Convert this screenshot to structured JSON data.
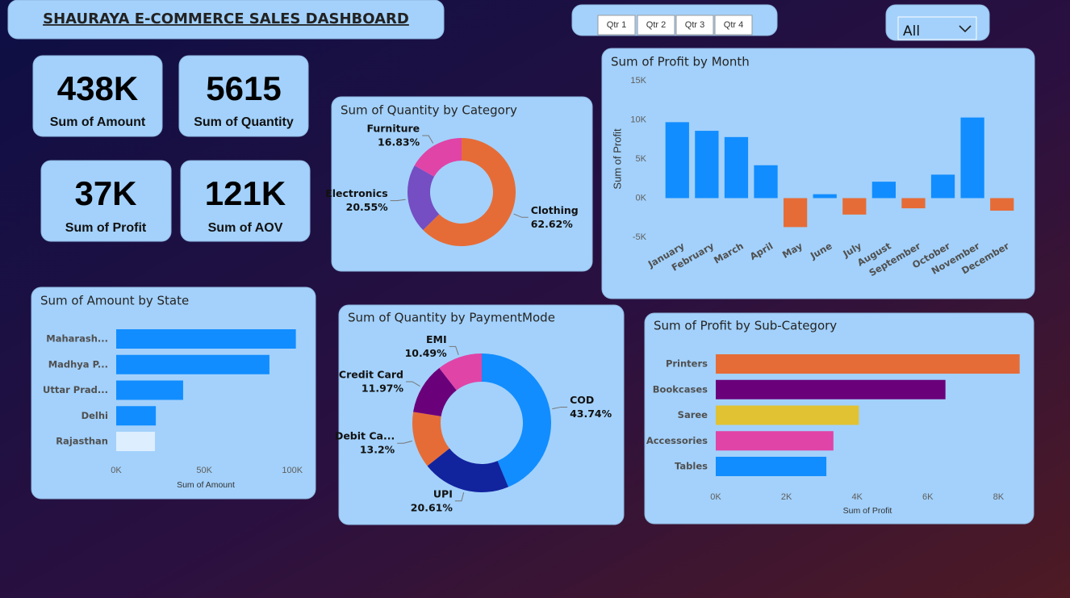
{
  "header": {
    "title": "SHAURAYA E-COMMERCE SALES DASHBOARD"
  },
  "slicers": {
    "quarters": [
      "Qtr 1",
      "Qtr 2",
      "Qtr 3",
      "Qtr 4"
    ],
    "dropdown": "All"
  },
  "kpis": [
    {
      "value": "438K",
      "label": "Sum of Amount"
    },
    {
      "value": "5615",
      "label": "Sum of Quantity"
    },
    {
      "value": "37K",
      "label": "Sum of Profit"
    },
    {
      "value": "121K",
      "label": "Sum of AOV"
    }
  ],
  "chart_data": [
    {
      "type": "donut",
      "title": "Sum of Quantity by Category",
      "categories": [
        "Clothing",
        "Electronics",
        "Furniture"
      ],
      "values": [
        62.62,
        20.55,
        16.83
      ],
      "value_labels": [
        "62.62%",
        "20.55%",
        "16.83%"
      ],
      "colors": [
        "#e66c37",
        "#744ec2",
        "#e044a7"
      ]
    },
    {
      "type": "bar",
      "title": "Sum of Profit by Month",
      "y_label": "Sum of Profit",
      "categories": [
        "January",
        "February",
        "March",
        "April",
        "May",
        "June",
        "July",
        "August",
        "September",
        "October",
        "November",
        "December"
      ],
      "values": [
        9700,
        8600,
        7800,
        4200,
        -3700,
        500,
        -2100,
        2100,
        -1300,
        3000,
        10300,
        -1600
      ],
      "colors": [
        "#118dff",
        "#118dff",
        "#118dff",
        "#118dff",
        "#e66c37",
        "#118dff",
        "#e66c37",
        "#118dff",
        "#e66c37",
        "#118dff",
        "#118dff",
        "#e66c37"
      ],
      "ylim": [
        -5000,
        15000
      ],
      "yticks": [
        {
          "value": -5000,
          "label": "-5K"
        },
        {
          "value": 0,
          "label": "0K"
        },
        {
          "value": 5000,
          "label": "5K"
        },
        {
          "value": 10000,
          "label": "10K"
        },
        {
          "value": 15000,
          "label": "15K"
        }
      ]
    },
    {
      "type": "barh",
      "title": "Sum of Amount by State",
      "x_label": "Sum of Amount",
      "categories": [
        "Maharash...",
        "Madhya P...",
        "Uttar Prad...",
        "Delhi",
        "Rajasthan"
      ],
      "values": [
        102000,
        87000,
        38000,
        22500,
        22000
      ],
      "colors": [
        "#118dff",
        "#118dff",
        "#118dff",
        "#118dff",
        "#ddeeff"
      ],
      "xlim": [
        0,
        104000
      ],
      "xticks": [
        {
          "value": 0,
          "label": "0K"
        },
        {
          "value": 50000,
          "label": "50K"
        },
        {
          "value": 100000,
          "label": "100K"
        }
      ]
    },
    {
      "type": "donut",
      "title": "Sum of Quantity by PaymentMode",
      "categories": [
        "COD",
        "UPI",
        "Debit Ca...",
        "Credit Card",
        "EMI"
      ],
      "values": [
        43.74,
        20.61,
        13.2,
        11.97,
        10.49
      ],
      "value_labels": [
        "43.74%",
        "20.61%",
        "13.2%",
        "11.97%",
        "10.49%"
      ],
      "colors": [
        "#118dff",
        "#12239e",
        "#e66c37",
        "#6b007b",
        "#e044a7"
      ]
    },
    {
      "type": "barh",
      "title": "Sum of Profit by Sub-Category",
      "x_label": "Sum of Profit",
      "categories": [
        "Printers",
        "Bookcases",
        "Saree",
        "Accessories",
        "Tables"
      ],
      "values": [
        8600,
        6500,
        4050,
        3330,
        3130
      ],
      "colors": [
        "#e66c37",
        "#6b007b",
        "#e1c233",
        "#e044a7",
        "#118dff"
      ],
      "xlim": [
        0,
        8700
      ],
      "xticks": [
        {
          "value": 0,
          "label": "0K"
        },
        {
          "value": 2000,
          "label": "2K"
        },
        {
          "value": 4000,
          "label": "4K"
        },
        {
          "value": 6000,
          "label": "6K"
        },
        {
          "value": 8000,
          "label": "8K"
        }
      ]
    }
  ]
}
